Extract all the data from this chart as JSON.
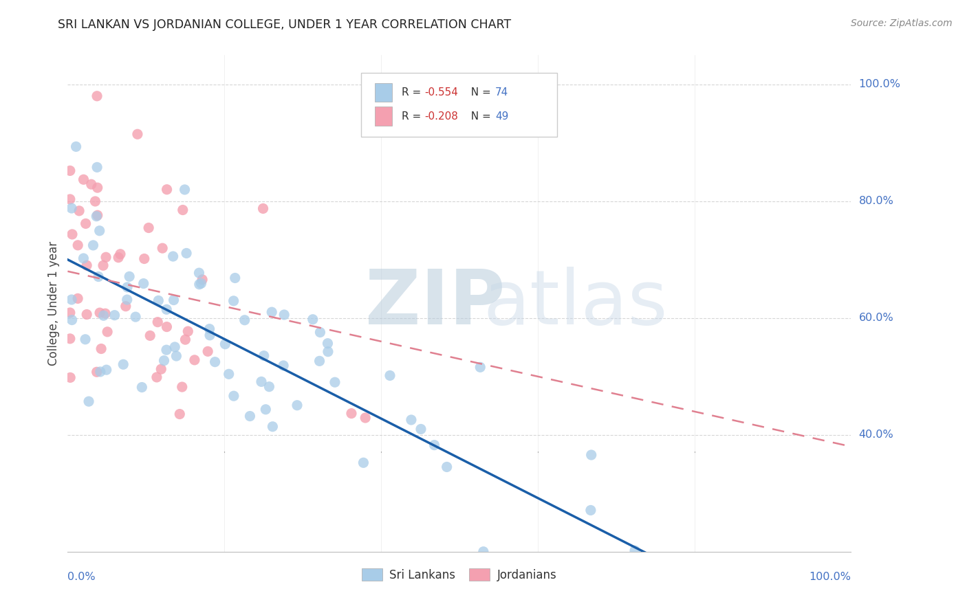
{
  "title": "SRI LANKAN VS JORDANIAN COLLEGE, UNDER 1 YEAR CORRELATION CHART",
  "source_text": "Source: ZipAtlas.com",
  "ylabel": "College, Under 1 year",
  "watermark_zip": "ZIP",
  "watermark_atlas": "atlas",
  "sri_lankan_color": "#A8CCE8",
  "jordanian_color": "#F4A0B0",
  "sri_lankan_line_color": "#1A5EA8",
  "jordanian_line_color": "#E08090",
  "background_color": "#FFFFFF",
  "grid_color": "#CCCCCC",
  "tick_color": "#4472C4",
  "r_sl": -0.554,
  "n_sl": 74,
  "r_jo": -0.208,
  "n_jo": 49,
  "seed": 12345
}
